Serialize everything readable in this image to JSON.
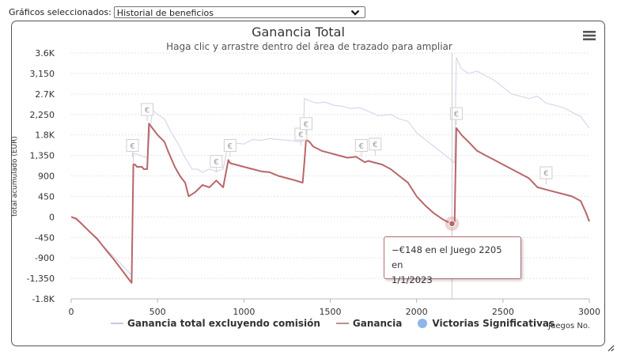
{
  "selector": {
    "label": "Gráficos seleccionados:",
    "value": "Historial de beneficios"
  },
  "colors": {
    "total_line": "#d5d3ec",
    "gain_line": "#b96669",
    "wins_marker": "#8fb6e8",
    "grid": "#dddddd",
    "crosshair": "#cccccc"
  },
  "icons": {
    "menu": "hamburger-menu-icon",
    "chevron": "chevron-down-icon",
    "resize": "resize-grip-icon",
    "marker": "euro-icon"
  },
  "tooltip": {
    "line1": "−€148 en el Juego 2205 en",
    "line2": "1/1/2023"
  },
  "chart_data": {
    "type": "line",
    "title": "Ganancia Total",
    "subtitle": "Haga clic y arrastre dentro del área de trazado para ampliar",
    "xlabel": "Juegos No.",
    "ylabel": "total acumulado (EUR)",
    "xlim": [
      0,
      3000
    ],
    "ylim": [
      -1800,
      3600
    ],
    "x_ticks": [
      {
        "v": 0,
        "label": "0"
      },
      {
        "v": 500,
        "label": "500"
      },
      {
        "v": 1000,
        "label": "1000"
      },
      {
        "v": 1500,
        "label": "1500"
      },
      {
        "v": 2000,
        "label": "2000"
      },
      {
        "v": 2500,
        "label": "2500"
      },
      {
        "v": 3000,
        "label": "3000"
      }
    ],
    "y_ticks": [
      {
        "v": 3600,
        "label": "3.6K"
      },
      {
        "v": 3150,
        "label": "3,150"
      },
      {
        "v": 2700,
        "label": "2.7K"
      },
      {
        "v": 2250,
        "label": "2,250"
      },
      {
        "v": 1800,
        "label": "1.8K"
      },
      {
        "v": 1350,
        "label": "1,350"
      },
      {
        "v": 900,
        "label": "900"
      },
      {
        "v": 450,
        "label": "450"
      },
      {
        "v": 0,
        "label": "0"
      },
      {
        "v": -450,
        "label": "-450"
      },
      {
        "v": -900,
        "label": "-900"
      },
      {
        "v": -1350,
        "label": "-1,350"
      },
      {
        "v": -1800,
        "label": "-1.8K"
      }
    ],
    "grid": true,
    "legend_position": "bottom",
    "series": [
      {
        "name": "Ganancia total excluyendo comisión",
        "color": "#d5d3ec",
        "x": [
          0,
          60,
          120,
          180,
          240,
          300,
          330,
          350,
          360,
          380,
          420,
          440,
          470,
          500,
          540,
          580,
          620,
          660,
          700,
          730,
          760,
          800,
          840,
          880,
          910,
          950,
          1000,
          1050,
          1100,
          1150,
          1200,
          1260,
          1330,
          1345,
          1350,
          1380,
          1420,
          1470,
          1520,
          1570,
          1620,
          1670,
          1720,
          1780,
          1850,
          1900,
          1950,
          2000,
          2050,
          2100,
          2150,
          2200,
          2220,
          2230,
          2260,
          2300,
          2350,
          2400,
          2450,
          2500,
          2550,
          2600,
          2650,
          2700,
          2750,
          2800,
          2850,
          2900,
          2950,
          3000
        ],
        "y": [
          0,
          -150,
          -380,
          -620,
          -850,
          -1080,
          -1200,
          -1280,
          1400,
          1380,
          1320,
          1300,
          2350,
          2250,
          2150,
          1850,
          1600,
          1300,
          1050,
          1050,
          980,
          1050,
          1000,
          1050,
          1650,
          1620,
          1600,
          1700,
          1680,
          1720,
          1700,
          1680,
          1650,
          1680,
          2600,
          2550,
          2500,
          2520,
          2450,
          2430,
          2380,
          2400,
          2320,
          2220,
          2250,
          2150,
          2100,
          1850,
          1700,
          1550,
          1400,
          1250,
          1180,
          3500,
          3250,
          3150,
          3200,
          3100,
          3000,
          2850,
          2700,
          2650,
          2600,
          2650,
          2500,
          2450,
          2400,
          2300,
          2200,
          1950
        ]
      },
      {
        "name": "Ganancia",
        "color": "#b96669",
        "x": [
          0,
          30,
          60,
          100,
          150,
          200,
          250,
          300,
          340,
          350,
          360,
          370,
          380,
          410,
          420,
          440,
          450,
          470,
          500,
          540,
          560,
          600,
          630,
          660,
          680,
          720,
          760,
          800,
          840,
          880,
          910,
          920,
          950,
          1000,
          1050,
          1100,
          1150,
          1200,
          1250,
          1300,
          1340,
          1350,
          1360,
          1380,
          1400,
          1450,
          1500,
          1550,
          1600,
          1650,
          1700,
          1720,
          1800,
          1850,
          1900,
          1950,
          2000,
          2050,
          2100,
          2150,
          2200,
          2205,
          2220,
          2230,
          2240,
          2260,
          2300,
          2350,
          2400,
          2450,
          2500,
          2550,
          2600,
          2650,
          2700,
          2750,
          2800,
          2850,
          2900,
          2950,
          2980,
          3000
        ],
        "y": [
          0,
          -40,
          -150,
          -300,
          -480,
          -720,
          -950,
          -1200,
          -1400,
          -1450,
          1150,
          1150,
          1100,
          1100,
          1050,
          1050,
          2050,
          1950,
          1800,
          1650,
          1450,
          1100,
          900,
          750,
          450,
          550,
          700,
          650,
          800,
          650,
          1250,
          1180,
          1150,
          1100,
          1050,
          1000,
          980,
          900,
          850,
          800,
          750,
          1200,
          1700,
          1650,
          1550,
          1450,
          1400,
          1350,
          1300,
          1320,
          1200,
          1230,
          1150,
          1050,
          900,
          750,
          450,
          250,
          80,
          -50,
          -148,
          -148,
          -100,
          1950,
          1900,
          1800,
          1650,
          1450,
          1350,
          1250,
          1150,
          1050,
          950,
          850,
          650,
          600,
          550,
          500,
          450,
          350,
          100,
          -100
        ]
      },
      {
        "name": "Victorias Significativas",
        "color": "#8fb6e8",
        "type": "flags",
        "marker_label": "€",
        "x": [
          355,
          440,
          840,
          920,
          1330,
          1360,
          1680,
          1760,
          2230,
          2750
        ],
        "y": [
          1300,
          2090,
          950,
          1300,
          1550,
          1780,
          1300,
          1330,
          2000,
          700
        ]
      }
    ]
  }
}
